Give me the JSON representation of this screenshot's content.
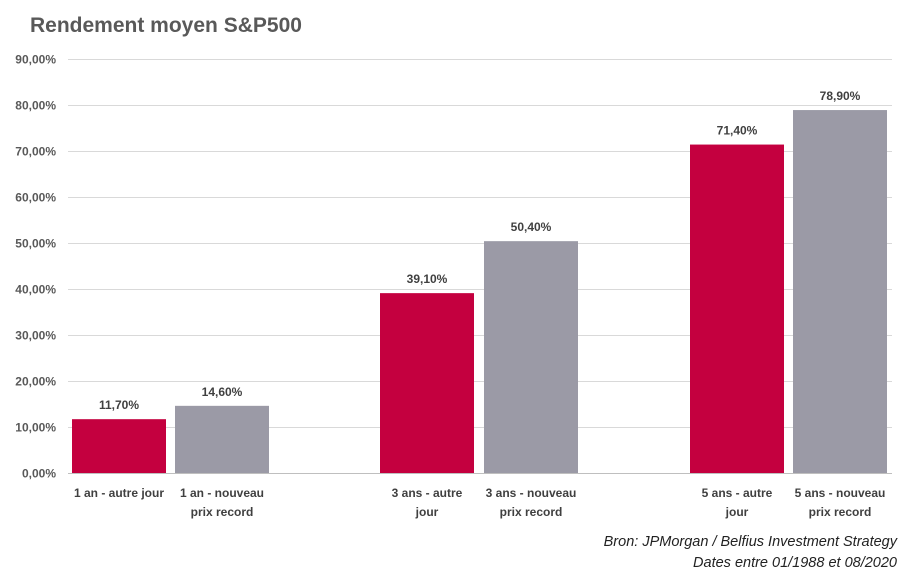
{
  "chart_data": {
    "type": "bar",
    "title": "Rendement moyen S&P500",
    "categories": [
      "1 an  - autre jour",
      "1 an - nouveau prix record",
      "3 ans - autre jour",
      "3 ans - nouveau prix record",
      "5 ans - autre jour",
      "5 ans - nouveau prix record"
    ],
    "category_lines": [
      [
        "1 an  - autre jour"
      ],
      [
        "1 an - nouveau",
        "prix record"
      ],
      [
        "3 ans - autre",
        "jour"
      ],
      [
        "3 ans - nouveau",
        "prix record"
      ],
      [
        "5 ans - autre",
        "jour"
      ],
      [
        "5 ans - nouveau",
        "prix record"
      ]
    ],
    "values": [
      11.7,
      14.6,
      39.1,
      50.4,
      71.4,
      78.9
    ],
    "value_labels": [
      "11,70%",
      "14,60%",
      "39,10%",
      "50,40%",
      "71,40%",
      "78,90%"
    ],
    "bar_colors": [
      "#c4003f",
      "#9b9aa6",
      "#c4003f",
      "#9b9aa6",
      "#c4003f",
      "#9b9aa6"
    ],
    "ylim": [
      0,
      90
    ],
    "yticks": [
      0,
      10,
      20,
      30,
      40,
      50,
      60,
      70,
      80,
      90
    ],
    "ytick_labels": [
      "0,00%",
      "10,00%",
      "20,00%",
      "30,00%",
      "40,00%",
      "50,00%",
      "60,00%",
      "70,00%",
      "80,00%",
      "90,00%"
    ],
    "grid": true,
    "xlabel": "",
    "ylabel": ""
  },
  "source": {
    "line1": "Bron: JPMorgan / Belfius Investment Strategy",
    "line2": "Dates entre 01/1988 et 08/2020"
  }
}
